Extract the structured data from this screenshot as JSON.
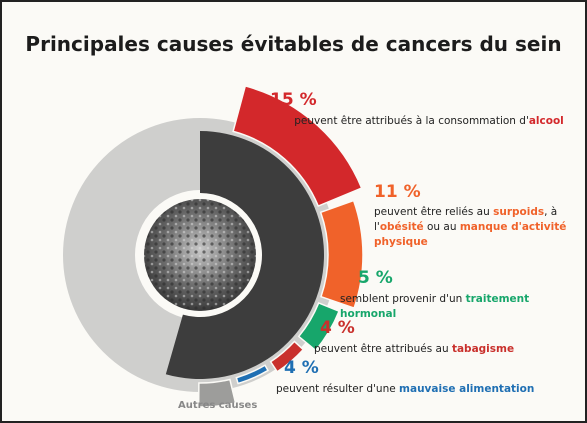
{
  "chart_data": {
    "type": "donut",
    "title": "Principales causes évitables de cancers du sein",
    "values": [
      15,
      11,
      5,
      4,
      4
    ],
    "value_labels": [
      "15 %",
      "11 %",
      "5 %",
      "4 %",
      "4 %"
    ],
    "colors": [
      "#d3282b",
      "#f0622a",
      "#17a66b",
      "#c9302c",
      "#1f6fb3"
    ],
    "descriptions": [
      [
        "peuvent être attribués à la consommation d'",
        "alcool"
      ],
      [
        "peuvent être reliés au ",
        "surpoids",
        ", à l'",
        "obésité",
        " ou au ",
        "manque d'activité physique"
      ],
      [
        "semblent provenir d'un ",
        "traitement hormonal"
      ],
      [
        "peuvent être attribués au ",
        "tabagisme"
      ],
      [
        "peuvent résulter d'une ",
        "mauvaise alimentation"
      ]
    ],
    "other_label": "Autres causes"
  }
}
